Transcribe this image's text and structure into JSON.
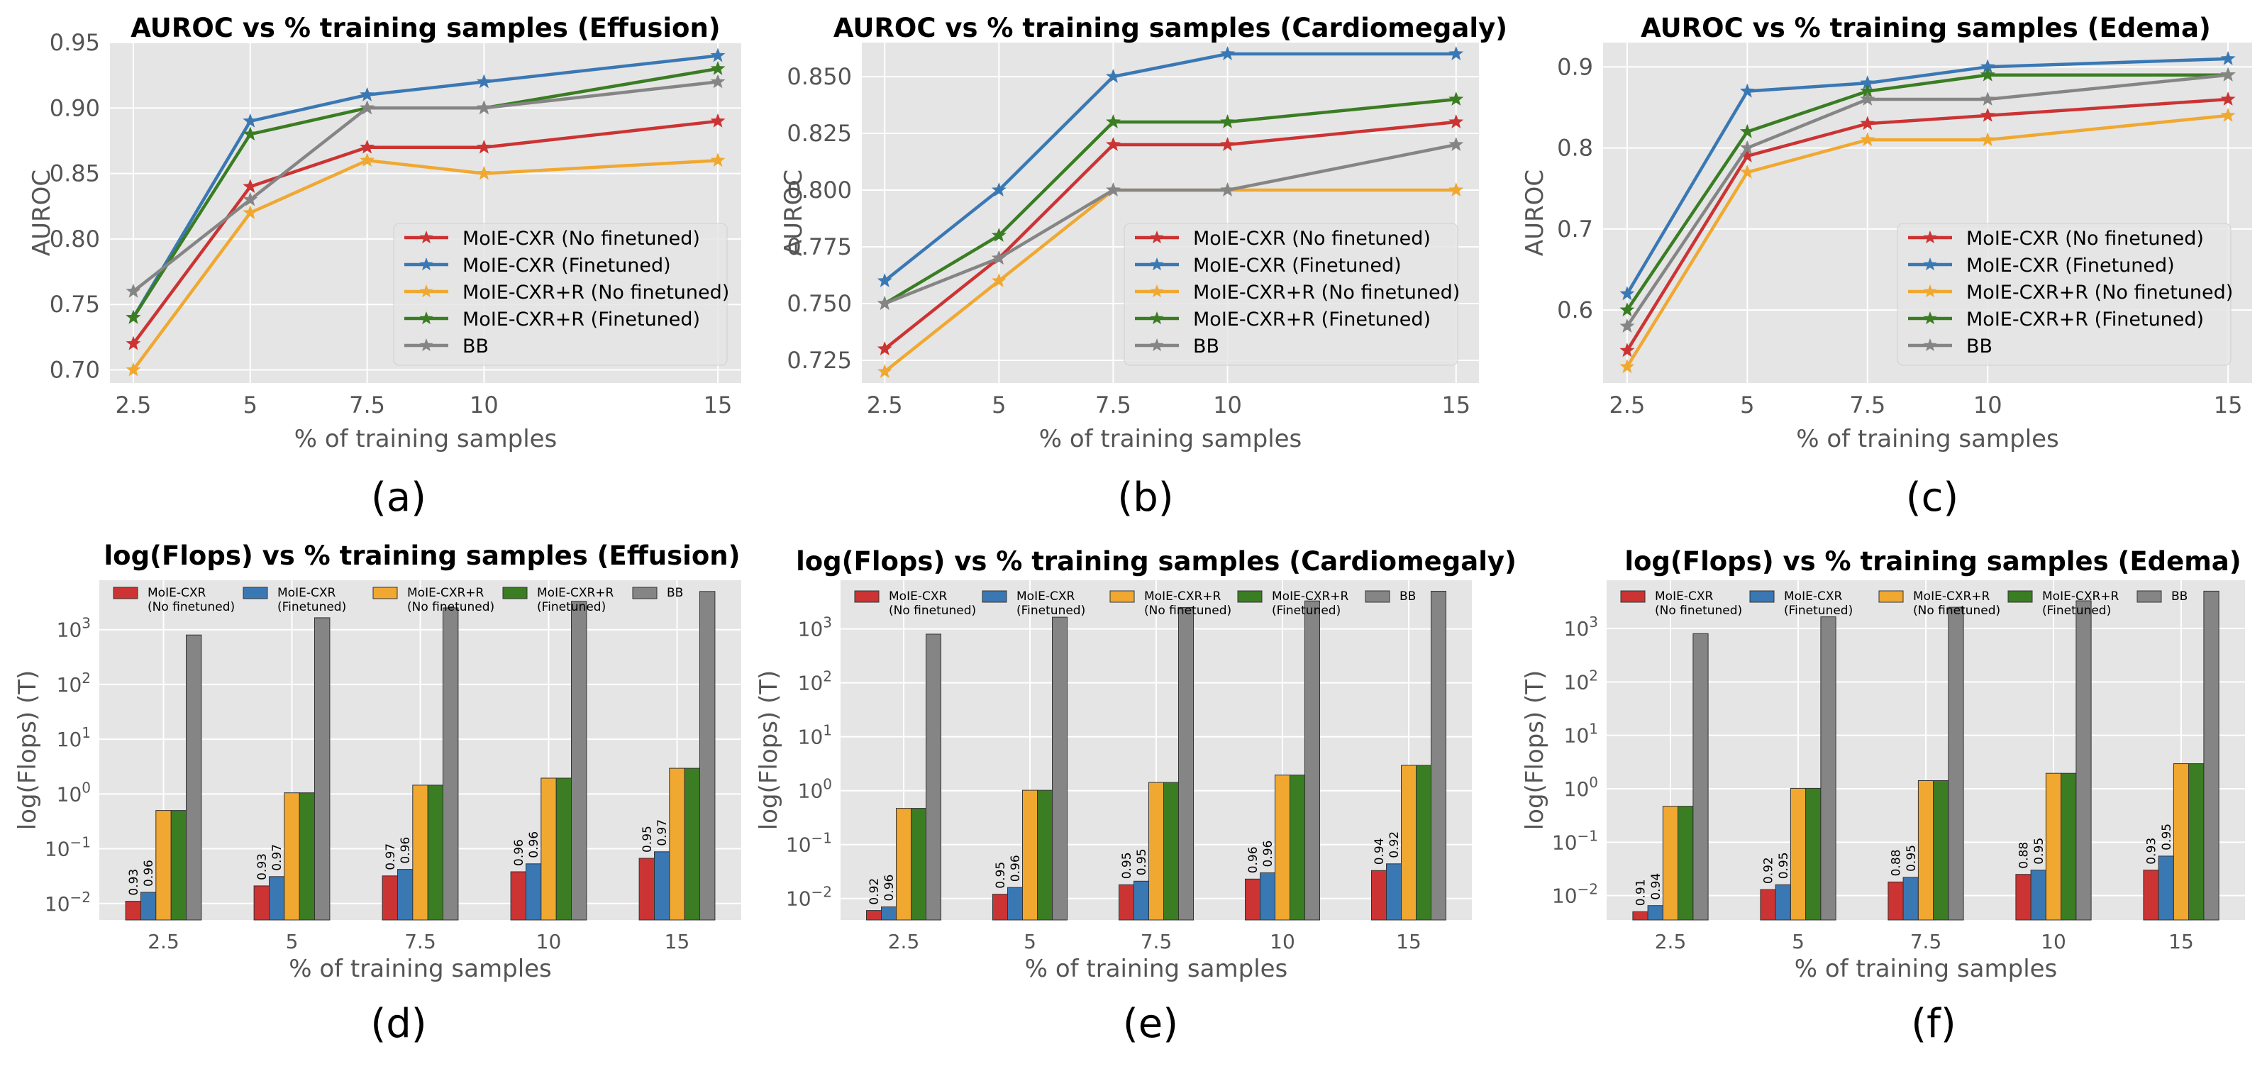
{
  "colors": {
    "MoIE-CXR (No finetuned)": "#cc3333",
    "MoIE-CXR (Finetuned)": "#3a78b4",
    "MoIE-CXR+R (No finetuned)": "#f0a830",
    "MoIE-CXR+R (Finetuned)": "#3a7d22",
    "BB": "#858585",
    "plot_bg": "#e5e5e5",
    "grid": "#ffffff"
  },
  "chart_data": [
    {
      "id": "a",
      "type": "line",
      "panel_label": "(a)",
      "title": "AUROC vs % training samples (Effusion)",
      "xlabel": "% of training samples",
      "ylabel": "AUROC",
      "x": [
        2.5,
        5,
        7.5,
        10,
        15
      ],
      "x_ticks": [
        "2.5",
        "5",
        "7.5",
        "10",
        "15"
      ],
      "ylim": [
        0.69,
        0.95
      ],
      "y_ticks": [
        0.7,
        0.75,
        0.8,
        0.85,
        0.9,
        0.95
      ],
      "y_tick_labels": [
        "0.70",
        "0.75",
        "0.80",
        "0.85",
        "0.90",
        "0.95"
      ],
      "grid": true,
      "legend": "lower-right",
      "series": [
        {
          "name": "MoIE-CXR (No finetuned)",
          "values": [
            0.72,
            0.84,
            0.87,
            0.87,
            0.89
          ]
        },
        {
          "name": "MoIE-CXR (Finetuned)",
          "values": [
            0.74,
            0.89,
            0.91,
            0.92,
            0.94
          ]
        },
        {
          "name": "MoIE-CXR+R (No finetuned)",
          "values": [
            0.7,
            0.82,
            0.86,
            0.85,
            0.86
          ]
        },
        {
          "name": "MoIE-CXR+R (Finetuned)",
          "values": [
            0.74,
            0.88,
            0.9,
            0.9,
            0.93
          ]
        },
        {
          "name": "BB",
          "values": [
            0.76,
            0.83,
            0.9,
            0.9,
            0.92
          ]
        }
      ]
    },
    {
      "id": "b",
      "type": "line",
      "panel_label": "(b)",
      "title": "AUROC vs % training samples (Cardiomegaly)",
      "xlabel": "% of training samples",
      "ylabel": "AUROC",
      "x": [
        2.5,
        5,
        7.5,
        10,
        15
      ],
      "x_ticks": [
        "2.5",
        "5",
        "7.5",
        "10",
        "15"
      ],
      "ylim": [
        0.715,
        0.865
      ],
      "y_ticks": [
        0.725,
        0.75,
        0.775,
        0.8,
        0.825,
        0.85
      ],
      "y_tick_labels": [
        "0.725",
        "0.750",
        "0.775",
        "0.800",
        "0.825",
        "0.850"
      ],
      "grid": true,
      "legend": "lower-right",
      "series": [
        {
          "name": "MoIE-CXR (No finetuned)",
          "values": [
            0.73,
            0.77,
            0.82,
            0.82,
            0.83
          ]
        },
        {
          "name": "MoIE-CXR (Finetuned)",
          "values": [
            0.76,
            0.8,
            0.85,
            0.86,
            0.86
          ]
        },
        {
          "name": "MoIE-CXR+R (No finetuned)",
          "values": [
            0.72,
            0.76,
            0.8,
            0.8,
            0.8
          ]
        },
        {
          "name": "MoIE-CXR+R (Finetuned)",
          "values": [
            0.75,
            0.78,
            0.83,
            0.83,
            0.84
          ]
        },
        {
          "name": "BB",
          "values": [
            0.75,
            0.77,
            0.8,
            0.8,
            0.82
          ]
        }
      ]
    },
    {
      "id": "c",
      "type": "line",
      "panel_label": "(c)",
      "title": "AUROC vs % training samples (Edema)",
      "xlabel": "% of training samples",
      "ylabel": "AUROC",
      "x": [
        2.5,
        5,
        7.5,
        10,
        15
      ],
      "x_ticks": [
        "2.5",
        "5",
        "7.5",
        "10",
        "15"
      ],
      "ylim": [
        0.51,
        0.93
      ],
      "y_ticks": [
        0.6,
        0.7,
        0.8,
        0.9
      ],
      "y_tick_labels": [
        "0.6",
        "0.7",
        "0.8",
        "0.9"
      ],
      "grid": true,
      "legend": "lower-right",
      "series": [
        {
          "name": "MoIE-CXR (No finetuned)",
          "values": [
            0.55,
            0.79,
            0.83,
            0.84,
            0.86
          ]
        },
        {
          "name": "MoIE-CXR (Finetuned)",
          "values": [
            0.62,
            0.87,
            0.88,
            0.9,
            0.91
          ]
        },
        {
          "name": "MoIE-CXR+R (No finetuned)",
          "values": [
            0.53,
            0.77,
            0.81,
            0.81,
            0.84
          ]
        },
        {
          "name": "MoIE-CXR+R (Finetuned)",
          "values": [
            0.6,
            0.82,
            0.87,
            0.89,
            0.89
          ]
        },
        {
          "name": "BB",
          "values": [
            0.58,
            0.8,
            0.86,
            0.86,
            0.89
          ]
        }
      ]
    },
    {
      "id": "d",
      "type": "bar",
      "panel_label": "(d)",
      "title": "log(Flops) vs % training samples (Effusion)",
      "xlabel": "% of training samples",
      "ylabel": "log(Flops) (T)",
      "categories": [
        "2.5",
        "5",
        "7.5",
        "10",
        "15"
      ],
      "y_scale": "log",
      "ylim": [
        0.005,
        8000
      ],
      "y_tick_labels": [
        "10^-2",
        "10^-1",
        "10^0",
        "10^1",
        "10^2",
        "10^3"
      ],
      "grid": true,
      "legend": "top",
      "legend_labels": [
        [
          "MoIE-CXR",
          "(No finetuned)"
        ],
        [
          "MoIE-CXR",
          "(Finetuned)"
        ],
        [
          "MoIE-CXR+R",
          "(No finetuned)"
        ],
        [
          "MoIE-CXR+R",
          "(Finetuned)"
        ],
        [
          "BB"
        ]
      ],
      "series": [
        {
          "name": "MoIE-CXR (No finetuned)",
          "values": [
            0.011,
            0.021,
            0.032,
            0.038,
            0.067
          ],
          "labels": [
            "0.93",
            "0.93",
            "0.97",
            "0.96",
            "0.95"
          ]
        },
        {
          "name": "MoIE-CXR (Finetuned)",
          "values": [
            0.016,
            0.031,
            0.042,
            0.053,
            0.088
          ],
          "labels": [
            "0.96",
            "0.97",
            "0.96",
            "0.96",
            "0.97"
          ]
        },
        {
          "name": "MoIE-CXR+R (No finetuned)",
          "values": [
            0.5,
            1.05,
            1.45,
            1.95,
            2.95
          ]
        },
        {
          "name": "MoIE-CXR+R (Finetuned)",
          "values": [
            0.5,
            1.05,
            1.45,
            1.95,
            2.95
          ]
        },
        {
          "name": "BB",
          "values": [
            800,
            1650,
            2500,
            3300,
            5000
          ]
        }
      ]
    },
    {
      "id": "e",
      "type": "bar",
      "panel_label": "(e)",
      "title": "log(Flops) vs % training samples (Cardiomegaly)",
      "xlabel": "% of training samples",
      "ylabel": "log(Flops) (T)",
      "categories": [
        "2.5",
        "5",
        "7.5",
        "10",
        "15"
      ],
      "y_scale": "log",
      "ylim": [
        0.004,
        8000
      ],
      "y_tick_labels": [
        "10^-2",
        "10^-1",
        "10^0",
        "10^1",
        "10^2",
        "10^3"
      ],
      "grid": true,
      "legend": "top",
      "legend_labels": [
        [
          "MoIE-CXR",
          "(No finetuned)"
        ],
        [
          "MoIE-CXR",
          "(Finetuned)"
        ],
        [
          "MoIE-CXR+R",
          "(No finetuned)"
        ],
        [
          "MoIE-CXR+R",
          "(Finetuned)"
        ],
        [
          "BB"
        ]
      ],
      "series": [
        {
          "name": "MoIE-CXR (No finetuned)",
          "values": [
            0.006,
            0.012,
            0.018,
            0.023,
            0.033
          ],
          "labels": [
            "0.92",
            "0.95",
            "0.95",
            "0.96",
            "0.94"
          ]
        },
        {
          "name": "MoIE-CXR (Finetuned)",
          "values": [
            0.007,
            0.016,
            0.021,
            0.03,
            0.044
          ],
          "labels": [
            "0.96",
            "0.96",
            "0.95",
            "0.96",
            "0.92"
          ]
        },
        {
          "name": "MoIE-CXR+R (No finetuned)",
          "values": [
            0.47,
            1.02,
            1.42,
            1.95,
            2.95
          ]
        },
        {
          "name": "MoIE-CXR+R (Finetuned)",
          "values": [
            0.47,
            1.02,
            1.42,
            1.95,
            2.95
          ]
        },
        {
          "name": "BB",
          "values": [
            800,
            1650,
            2500,
            3300,
            5000
          ]
        }
      ]
    },
    {
      "id": "f",
      "type": "bar",
      "panel_label": "(f)",
      "title": "log(Flops) vs % training samples (Edema)",
      "xlabel": "% of training samples",
      "ylabel": "log(Flops) (T)",
      "categories": [
        "2.5",
        "5",
        "7.5",
        "10",
        "15"
      ],
      "y_scale": "log",
      "ylim": [
        0.0035,
        8000
      ],
      "y_tick_labels": [
        "10^-2",
        "10^-1",
        "10^0",
        "10^1",
        "10^2",
        "10^3"
      ],
      "grid": true,
      "legend": "top",
      "legend_labels": [
        [
          "MoIE-CXR",
          "(No finetuned)"
        ],
        [
          "MoIE-CXR",
          "(Finetuned)"
        ],
        [
          "MoIE-CXR+R",
          "(No finetuned)"
        ],
        [
          "MoIE-CXR+R",
          "(Finetuned)"
        ],
        [
          "BB"
        ]
      ],
      "series": [
        {
          "name": "MoIE-CXR (No finetuned)",
          "values": [
            0.005,
            0.013,
            0.018,
            0.025,
            0.03
          ],
          "labels": [
            "0.91",
            "0.92",
            "0.88",
            "0.88",
            "0.93"
          ]
        },
        {
          "name": "MoIE-CXR (Finetuned)",
          "values": [
            0.0065,
            0.016,
            0.022,
            0.03,
            0.055
          ],
          "labels": [
            "0.94",
            "0.95",
            "0.95",
            "0.95",
            "0.95"
          ]
        },
        {
          "name": "MoIE-CXR+R (No finetuned)",
          "values": [
            0.47,
            1.02,
            1.42,
            1.95,
            2.95
          ]
        },
        {
          "name": "MoIE-CXR+R (Finetuned)",
          "values": [
            0.47,
            1.02,
            1.42,
            1.95,
            2.95
          ]
        },
        {
          "name": "BB",
          "values": [
            800,
            1650,
            2500,
            3300,
            5000
          ]
        }
      ]
    }
  ]
}
